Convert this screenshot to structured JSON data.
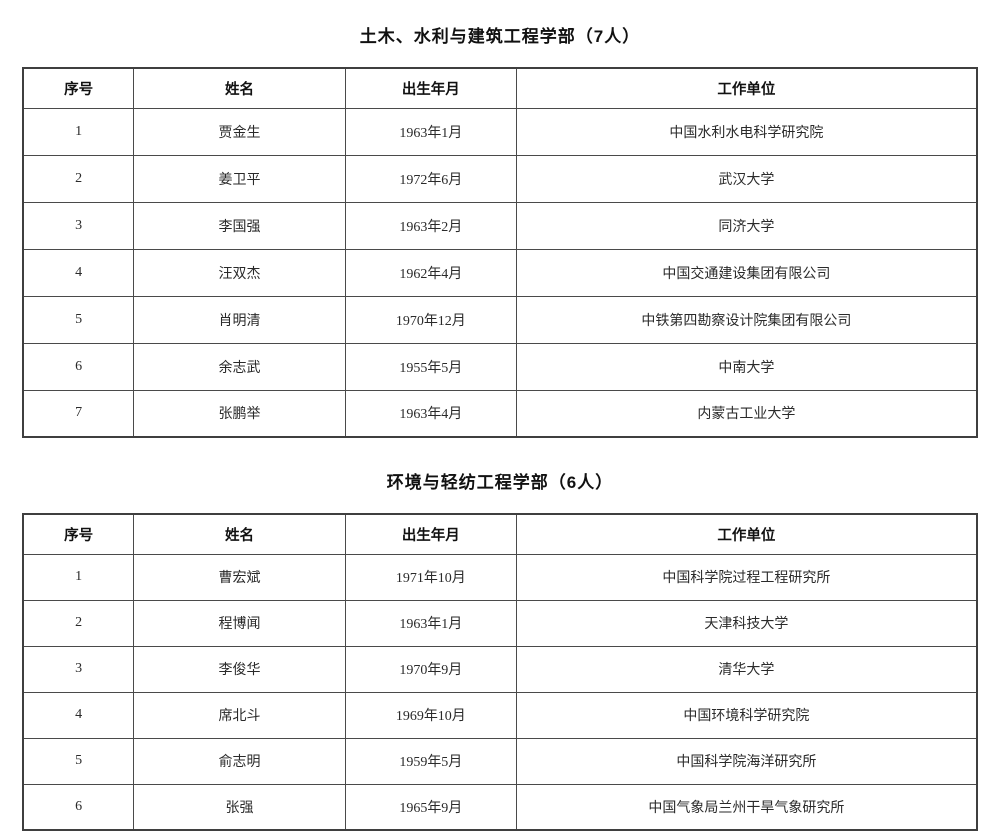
{
  "tables": [
    {
      "title": "土木、水利与建筑工程学部（7人）",
      "headers": [
        "序号",
        "姓名",
        "出生年月",
        "工作单位"
      ],
      "rows": [
        [
          "1",
          "贾金生",
          "1963年1月",
          "中国水利水电科学研究院"
        ],
        [
          "2",
          "姜卫平",
          "1972年6月",
          "武汉大学"
        ],
        [
          "3",
          "李国强",
          "1963年2月",
          "同济大学"
        ],
        [
          "4",
          "汪双杰",
          "1962年4月",
          "中国交通建设集团有限公司"
        ],
        [
          "5",
          "肖明清",
          "1970年12月",
          "中铁第四勘察设计院集团有限公司"
        ],
        [
          "6",
          "余志武",
          "1955年5月",
          "中南大学"
        ],
        [
          "7",
          "张鹏举",
          "1963年4月",
          "内蒙古工业大学"
        ]
      ]
    },
    {
      "title": "环境与轻纺工程学部（6人）",
      "headers": [
        "序号",
        "姓名",
        "出生年月",
        "工作单位"
      ],
      "rows": [
        [
          "1",
          "曹宏斌",
          "1971年10月",
          "中国科学院过程工程研究所"
        ],
        [
          "2",
          "程博闻",
          "1963年1月",
          "天津科技大学"
        ],
        [
          "3",
          "李俊华",
          "1970年9月",
          "清华大学"
        ],
        [
          "4",
          "席北斗",
          "1969年10月",
          "中国环境科学研究院"
        ],
        [
          "5",
          "俞志明",
          "1959年5月",
          "中国科学院海洋研究所"
        ],
        [
          "6",
          "张强",
          "1965年9月",
          "中国气象局兰州干旱气象研究所"
        ]
      ]
    }
  ],
  "colors": {
    "outer_border": "#3f3f3f",
    "inner_border": "#4a4a4a",
    "text": "#2a2a2a",
    "background": "#ffffff"
  },
  "cell_semantics": [
    "row-number",
    "name",
    "birth-date",
    "work-unit"
  ]
}
